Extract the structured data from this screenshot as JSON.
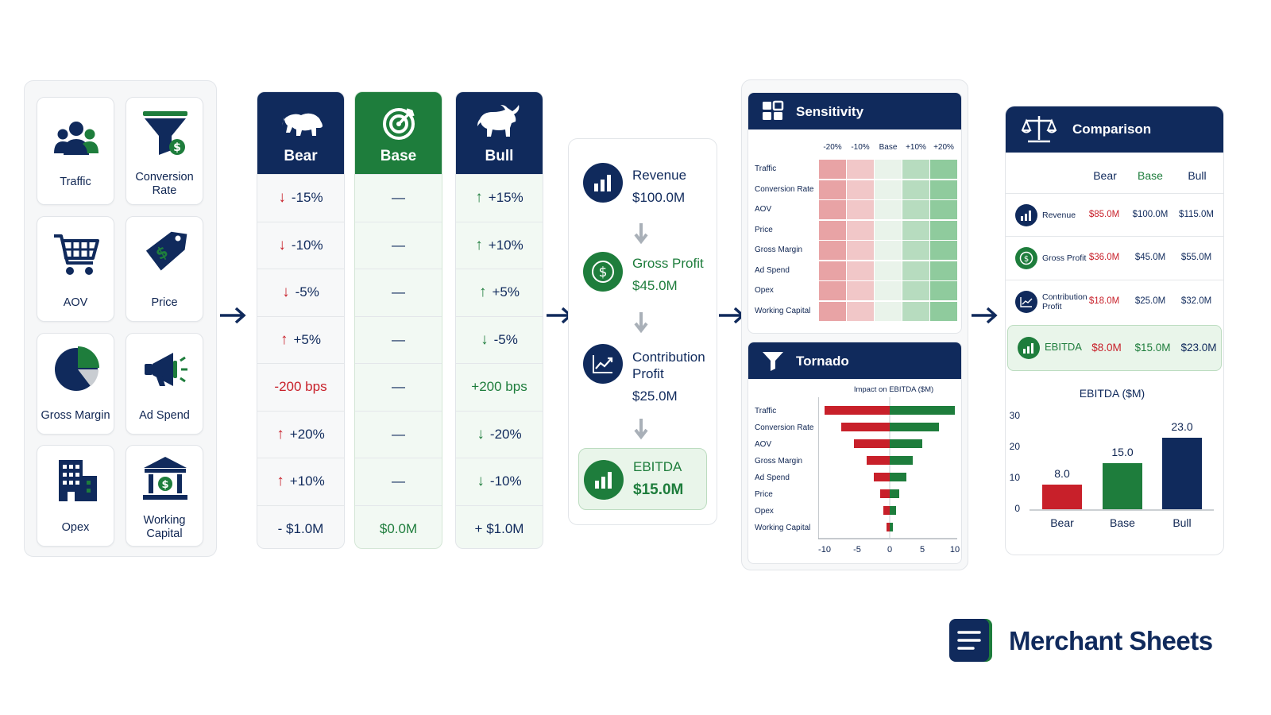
{
  "colors": {
    "navy": "#102a5c",
    "green": "#1e7d3c",
    "red": "#c8202a",
    "light_green": "#e9f5ea"
  },
  "drivers": [
    {
      "label": "Traffic",
      "icon": "users-icon"
    },
    {
      "label": "Conversion Rate",
      "icon": "funnel-dollar-icon"
    },
    {
      "label": "AOV",
      "icon": "shopping-cart-icon"
    },
    {
      "label": "Price",
      "icon": "price-tag-icon"
    },
    {
      "label": "Gross Margin",
      "icon": "pie-chart-icon"
    },
    {
      "label": "Ad Spend",
      "icon": "megaphone-icon"
    },
    {
      "label": "Opex",
      "icon": "building-icon"
    },
    {
      "label": "Working Capital",
      "icon": "bank-icon"
    }
  ],
  "scenarios": {
    "bear": {
      "title": "Bear",
      "icon": "bear-icon",
      "rows": [
        "-15%",
        "-10%",
        "-5%",
        "+5%",
        "-200 bps",
        "+20%",
        "+10%",
        "- $1.0M"
      ],
      "dirs": [
        "down",
        "down",
        "down",
        "up",
        "none",
        "up",
        "up",
        "none"
      ]
    },
    "base": {
      "title": "Base",
      "icon": "target-icon",
      "rows": [
        "—",
        "—",
        "—",
        "—",
        "—",
        "—",
        "—",
        "$0.0M"
      ]
    },
    "bull": {
      "title": "Bull",
      "icon": "bull-icon",
      "rows": [
        "+15%",
        "+10%",
        "+5%",
        "-5%",
        "+200 bps",
        "-20%",
        "-10%",
        "+ $1.0M"
      ],
      "dirs": [
        "up",
        "up",
        "up",
        "down",
        "none",
        "down",
        "down",
        "none"
      ]
    }
  },
  "flow": {
    "revenue": {
      "label": "Revenue",
      "value": "$100.0M"
    },
    "gross_profit": {
      "label": "Gross Profit",
      "value": "$45.0M"
    },
    "contribution": {
      "label1": "Contribution",
      "label2": "Profit",
      "value": "$25.0M"
    },
    "ebitda": {
      "label": "EBITDA",
      "value": "$15.0M"
    }
  },
  "sensitivity": {
    "title": "Sensitivity",
    "columns": [
      "-20%",
      "-10%",
      "Base",
      "+10%",
      "+20%"
    ],
    "rows": [
      "Traffic",
      "Conversion Rate",
      "AOV",
      "Price",
      "Gross Margin",
      "Ad Spend",
      "Opex",
      "Working Capital"
    ]
  },
  "tornado": {
    "title": "Tornado",
    "subtitle": "Impact on EBITDA ($M)",
    "ticks": [
      "-10",
      "-5",
      "0",
      "5",
      "10"
    ]
  },
  "comparison": {
    "title": "Comparison",
    "headers": [
      "Bear",
      "Base",
      "Bull"
    ],
    "rows": [
      {
        "name1": "Revenue",
        "name2": "",
        "bear": "$85.0M",
        "base": "$100.0M",
        "bull": "$115.0M",
        "icon": "bar-chart-icon"
      },
      {
        "name1": "Gross Profit",
        "name2": "",
        "bear": "$36.0M",
        "base": "$45.0M",
        "bull": "$55.0M",
        "icon": "dollar-icon"
      },
      {
        "name1": "Contribution",
        "name2": "Profit",
        "bear": "$18.0M",
        "base": "$25.0M",
        "bull": "$32.0M",
        "icon": "line-chart-icon"
      },
      {
        "name1": "EBITDA",
        "name2": "",
        "bear": "$8.0M",
        "base": "$15.0M",
        "bull": "$23.0M",
        "icon": "bar-chart-icon"
      }
    ]
  },
  "chart_data": [
    {
      "type": "heatmap",
      "title": "Sensitivity",
      "columns": [
        "-20%",
        "-10%",
        "Base",
        "+10%",
        "+20%"
      ],
      "rows": [
        "Traffic",
        "Conversion Rate",
        "AOV",
        "Price",
        "Gross Margin",
        "Ad Spend",
        "Opex",
        "Working Capital"
      ],
      "values": [
        [
          -2,
          -1,
          0,
          1,
          2
        ],
        [
          -2,
          -1,
          0,
          1,
          2
        ],
        [
          -2,
          -1,
          0,
          1,
          2
        ],
        [
          -2,
          -1,
          0,
          1,
          2
        ],
        [
          -2,
          -1,
          0,
          1,
          2
        ],
        [
          -2,
          -1,
          0,
          1,
          2
        ],
        [
          -2,
          -1,
          0,
          1,
          2
        ],
        [
          -2,
          -1,
          0,
          1,
          2
        ]
      ]
    },
    {
      "type": "bar",
      "title": "Tornado",
      "subtitle": "Impact on EBITDA ($M)",
      "categories": [
        "Traffic",
        "Conversion Rate",
        "AOV",
        "Gross Margin",
        "Ad Spend",
        "Price",
        "Opex",
        "Working Capital"
      ],
      "series": [
        {
          "values": [
            -10.0,
            -7.5,
            -5.5,
            -3.5,
            -2.5,
            -1.5,
            -1.0,
            -0.5
          ]
        },
        {
          "values": [
            10.0,
            7.5,
            5.0,
            3.5,
            2.5,
            1.5,
            1.0,
            0.5
          ]
        }
      ],
      "xlim": [
        -10,
        10
      ],
      "ticks": [
        -10,
        -5,
        0,
        5,
        10
      ]
    },
    {
      "type": "bar",
      "title": "EBITDA ($M)",
      "categories": [
        "Bear",
        "Base",
        "Bull"
      ],
      "values": [
        8.0,
        15.0,
        23.0
      ],
      "value_labels": [
        "8.0",
        "15.0",
        "23.0"
      ],
      "ylim": [
        0,
        30
      ],
      "yticks": [
        0,
        10,
        20,
        30
      ]
    }
  ],
  "brand": {
    "name": "Merchant Sheets",
    "icon": "sheet-logo-icon"
  }
}
